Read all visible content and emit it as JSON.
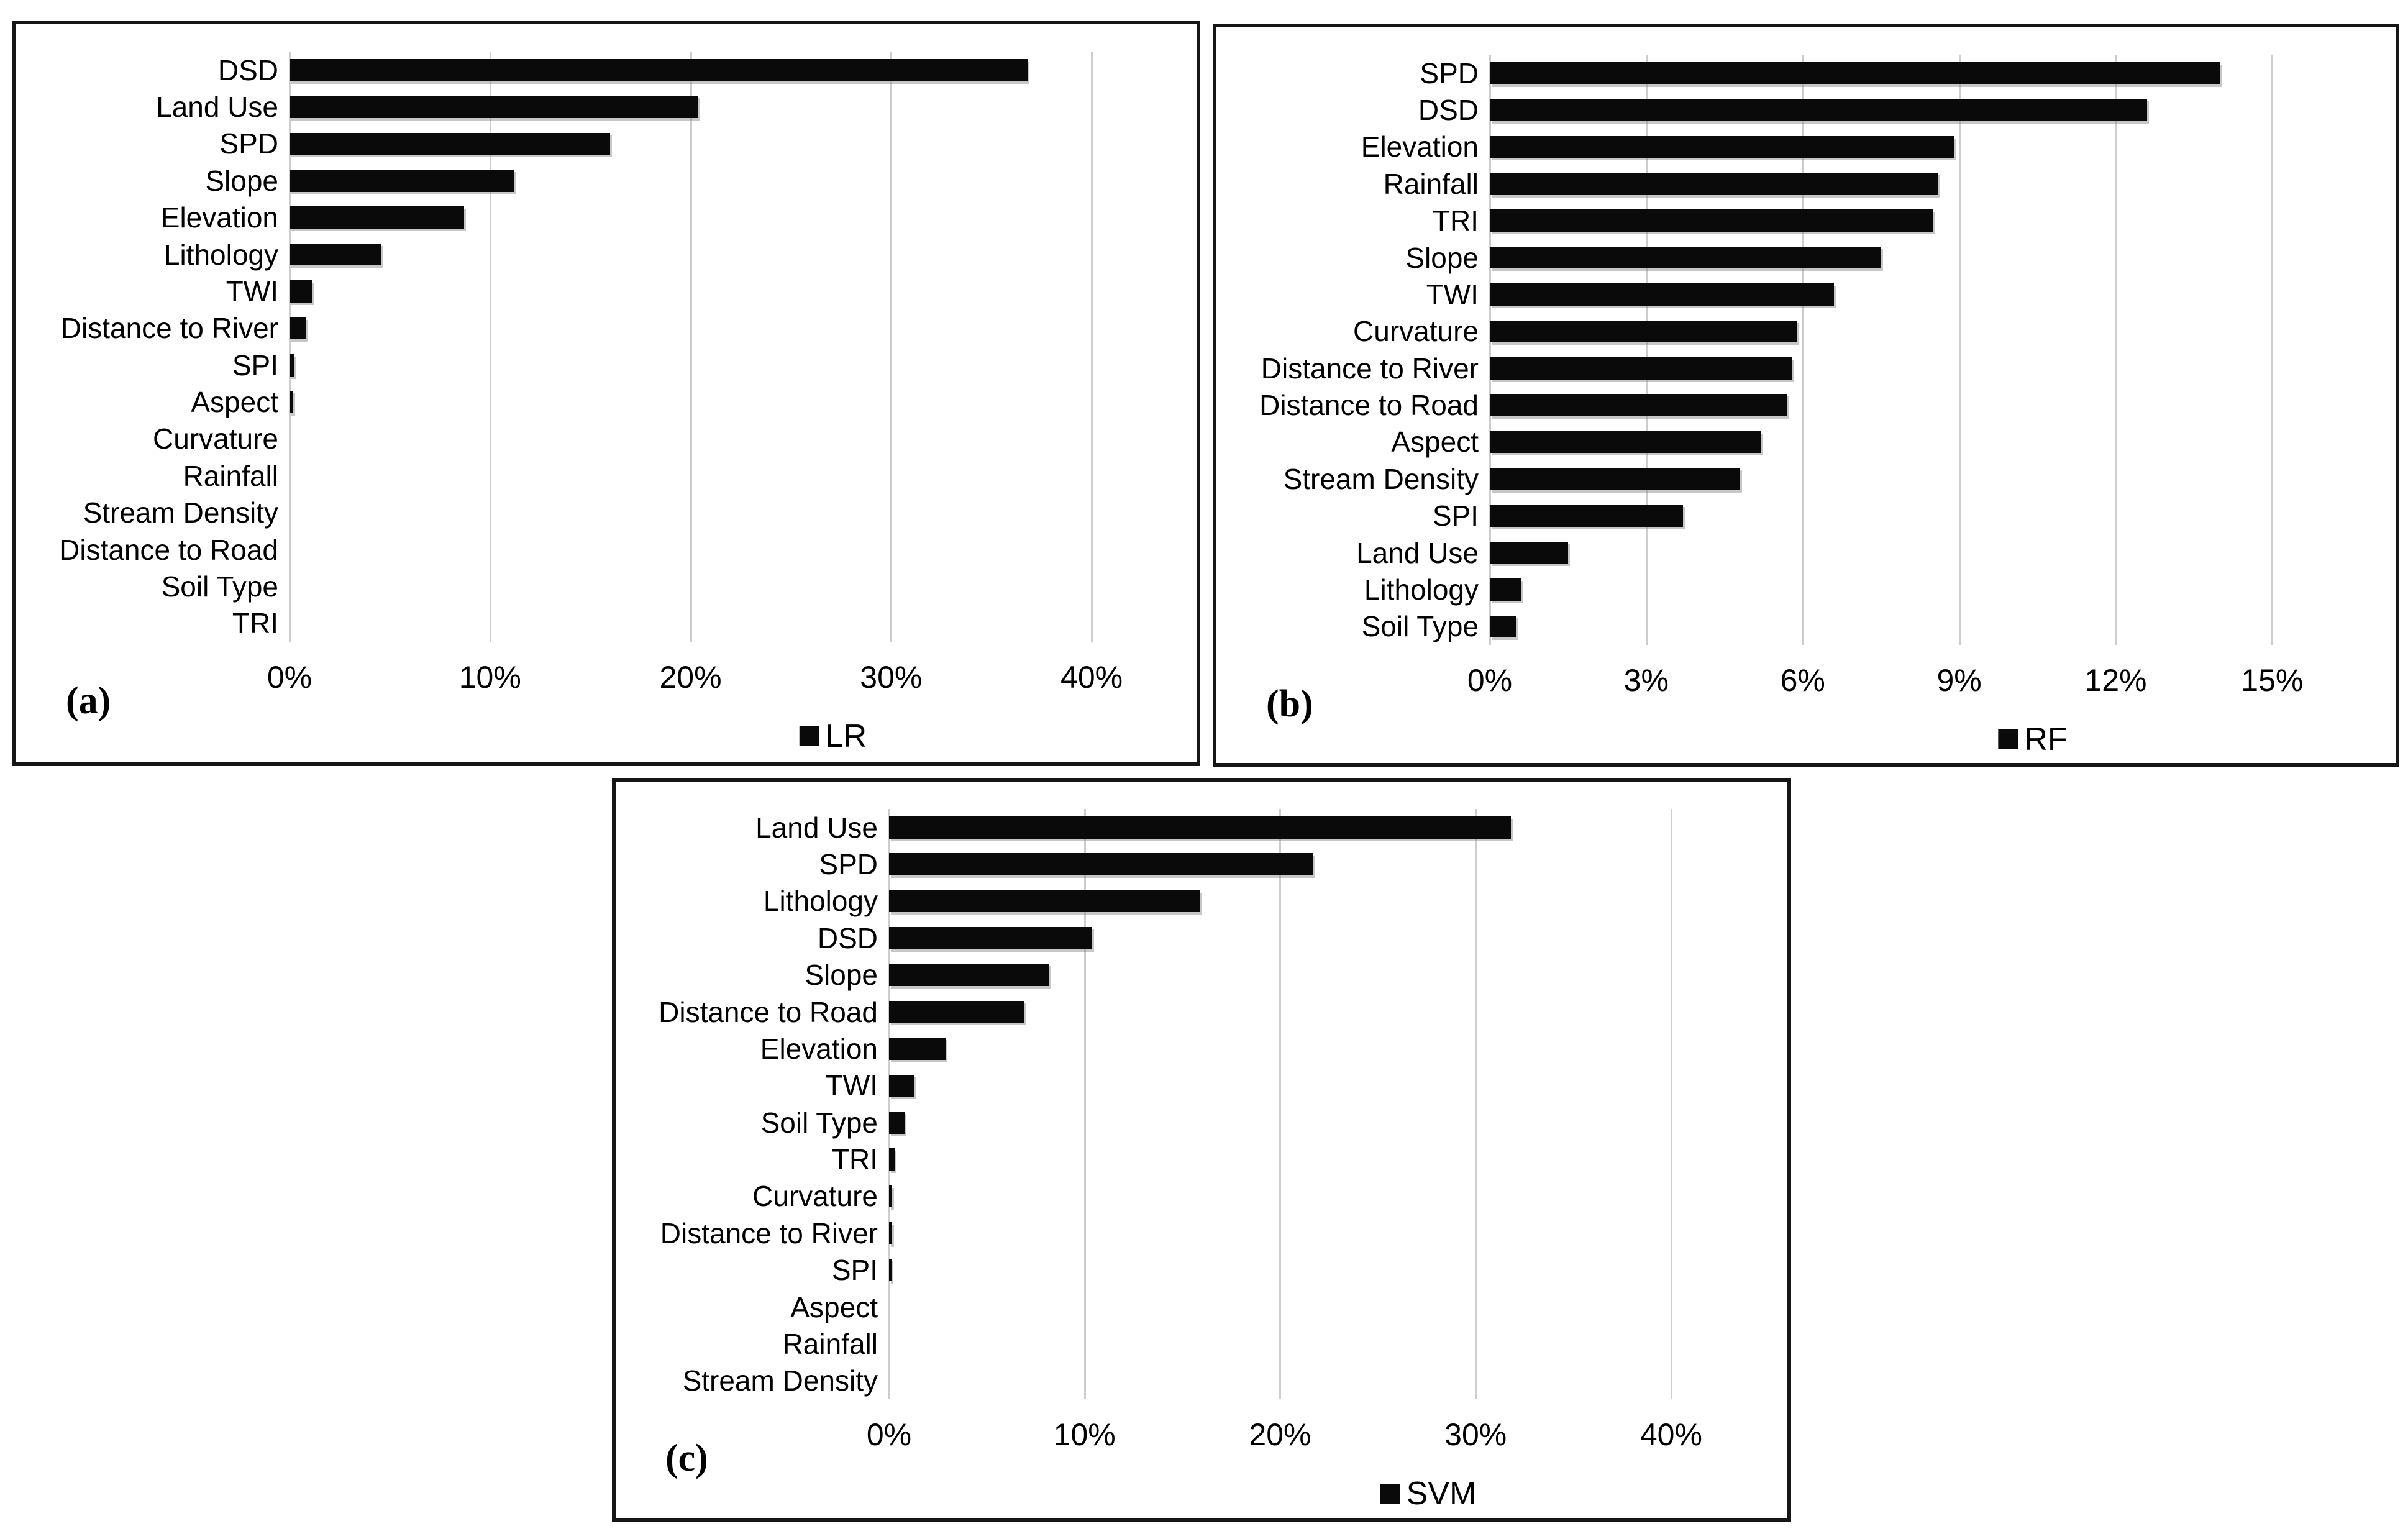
{
  "figure": {
    "background": "#ffffff",
    "description": "Three horizontal bar charts of conditioning-factor importance (%) for three models"
  },
  "style": {
    "bar_color": "#0a0a0a",
    "gridline_color": "#cdcdcd",
    "panel_border_color": "#161616",
    "text_color": "#000000"
  },
  "chart_data": [
    {
      "type": "bar",
      "orientation": "horizontal",
      "panel_label": "(a)",
      "legend": {
        "label": "LR",
        "marker": "black-square",
        "position": "bottom-center-right"
      },
      "title": "",
      "xlabel": "",
      "ylabel": "",
      "grid": true,
      "x_axis": {
        "max": 44.8,
        "ticks": [
          {
            "value": 0,
            "label": "0%"
          },
          {
            "value": 10,
            "label": "10%"
          },
          {
            "value": 20,
            "label": "20%"
          },
          {
            "value": 30,
            "label": "30%"
          },
          {
            "value": 40,
            "label": "40%"
          }
        ]
      },
      "categories": [
        "DSD",
        "Land Use",
        "SPD",
        "Slope",
        "Elevation",
        "Lithology",
        "TWI",
        "Distance to River",
        "SPI",
        "Aspect",
        "Curvature",
        "Rainfall",
        "Stream Density",
        "Distance to Road",
        "Soil Type",
        "TRI"
      ],
      "values": [
        36.8,
        20.4,
        16.0,
        11.2,
        8.7,
        4.6,
        1.1,
        0.8,
        0.25,
        0.18,
        0,
        0,
        0,
        0,
        0,
        0
      ]
    },
    {
      "type": "bar",
      "orientation": "horizontal",
      "panel_label": "(b)",
      "legend": {
        "label": "RF",
        "marker": "black-square",
        "position": "bottom-center-right"
      },
      "title": "",
      "xlabel": "",
      "ylabel": "",
      "grid": true,
      "x_axis": {
        "max": 17.2,
        "ticks": [
          {
            "value": 0,
            "label": "0%"
          },
          {
            "value": 3,
            "label": "3%"
          },
          {
            "value": 6,
            "label": "6%"
          },
          {
            "value": 9,
            "label": "9%"
          },
          {
            "value": 12,
            "label": "12%"
          },
          {
            "value": 15,
            "label": "15%"
          }
        ]
      },
      "categories": [
        "SPD",
        "DSD",
        "Elevation",
        "Rainfall",
        "TRI",
        "Slope",
        "TWI",
        "Curvature",
        "Distance to River",
        "Distance to Road",
        "Aspect",
        "Stream Density",
        "SPI",
        "Land Use",
        "Lithology",
        "Soil Type"
      ],
      "values": [
        14.0,
        12.6,
        8.9,
        8.6,
        8.5,
        7.5,
        6.6,
        5.9,
        5.8,
        5.7,
        5.2,
        4.8,
        3.7,
        1.5,
        0.6,
        0.5
      ]
    },
    {
      "type": "bar",
      "orientation": "horizontal",
      "panel_label": "(c)",
      "legend": {
        "label": "SVM",
        "marker": "black-square",
        "position": "bottom-center-right"
      },
      "title": "",
      "xlabel": "",
      "ylabel": "",
      "grid": true,
      "x_axis": {
        "max": 45.5,
        "ticks": [
          {
            "value": 0,
            "label": "0%"
          },
          {
            "value": 10,
            "label": "10%"
          },
          {
            "value": 20,
            "label": "20%"
          },
          {
            "value": 30,
            "label": "30%"
          },
          {
            "value": 40,
            "label": "40%"
          }
        ]
      },
      "categories": [
        "Land Use",
        "SPD",
        "Lithology",
        "DSD",
        "Slope",
        "Distance to Road",
        "Elevation",
        "TWI",
        "Soil Type",
        "TRI",
        "Curvature",
        "Distance to River",
        "SPI",
        "Aspect",
        "Rainfall",
        "Stream Density"
      ],
      "values": [
        31.8,
        21.7,
        15.9,
        10.4,
        8.2,
        6.9,
        2.9,
        1.3,
        0.8,
        0.3,
        0.15,
        0.15,
        0.12,
        0,
        0,
        0
      ]
    }
  ]
}
